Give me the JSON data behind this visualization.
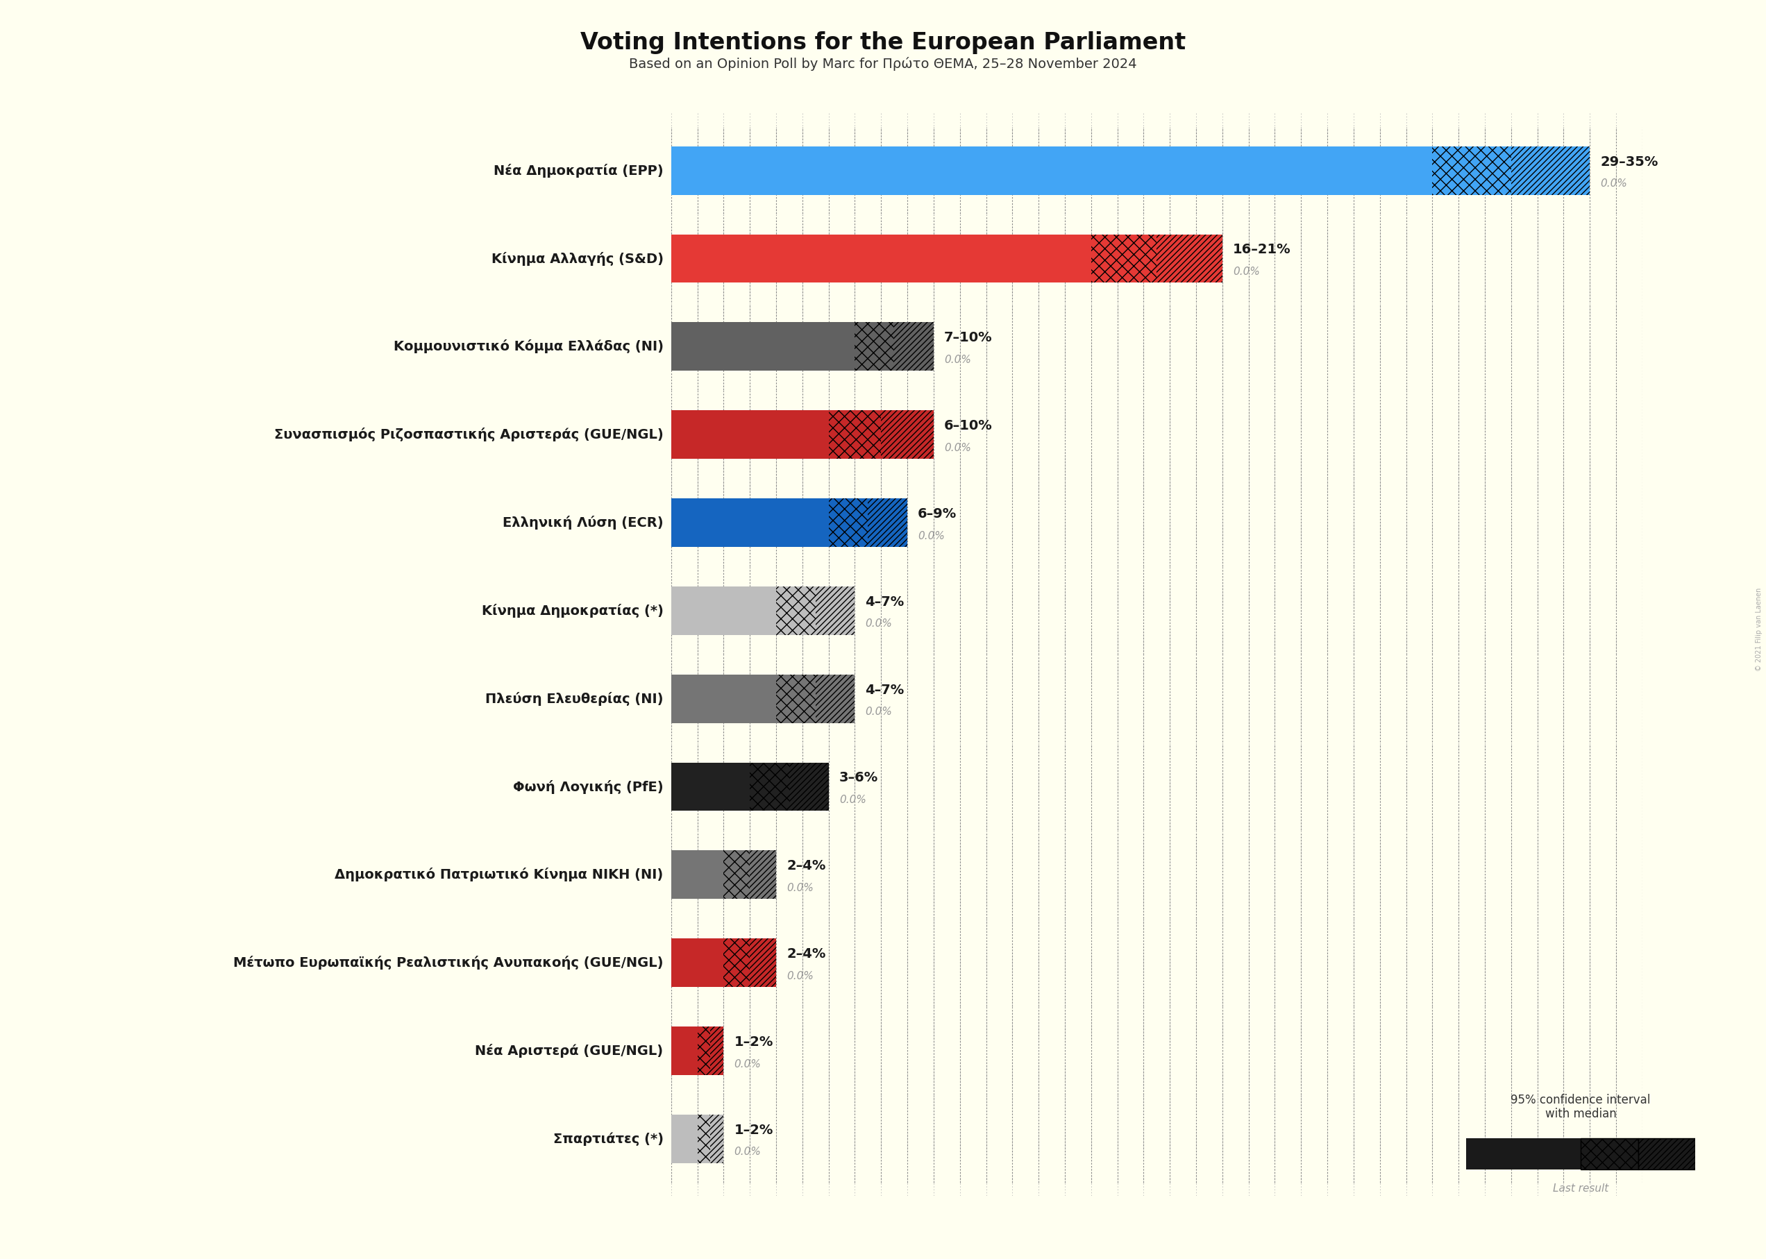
{
  "title": "Voting Intentions for the European Parliament",
  "subtitle": "Based on an Opinion Poll by Marc for Πρώτο ΘΕΜΑ, 25–28 November 2024",
  "copyright": "© 2021 Filip van Laenen",
  "background_color": "#fffff0",
  "parties": [
    {
      "name": "Νέα Δημοκρατία (EPP)",
      "low": 29,
      "high": 35,
      "median": 32,
      "last": 0.0,
      "color": "#42a5f5",
      "hatch_color": "#42a5f5"
    },
    {
      "name": "Κίνημα Αλλαγής (S&D)",
      "low": 16,
      "high": 21,
      "median": 18,
      "last": 0.0,
      "color": "#e53935",
      "hatch_color": "#e53935"
    },
    {
      "name": "Κομμουνιστικό Κόμμα Ελλάδας (NI)",
      "low": 7,
      "high": 10,
      "median": 8,
      "last": 0.0,
      "color": "#616161",
      "hatch_color": "#616161"
    },
    {
      "name": "Συνασπισμός Ριζοσπαστικής Αριστεράς (GUE/NGL)",
      "low": 6,
      "high": 10,
      "median": 8,
      "last": 0.0,
      "color": "#c62828",
      "hatch_color": "#c62828"
    },
    {
      "name": "Ελληνική Λύση (ECR)",
      "low": 6,
      "high": 9,
      "median": 7,
      "last": 0.0,
      "color": "#1565c0",
      "hatch_color": "#1565c0"
    },
    {
      "name": "Κίνημα Δημοκρατίας (*)",
      "low": 4,
      "high": 7,
      "median": 5,
      "last": 0.0,
      "color": "#bdbdbd",
      "hatch_color": "#bdbdbd"
    },
    {
      "name": "Πλεύση Ελευθερίας (NI)",
      "low": 4,
      "high": 7,
      "median": 5,
      "last": 0.0,
      "color": "#757575",
      "hatch_color": "#757575"
    },
    {
      "name": "Φωνή Λογικής (PfE)",
      "low": 3,
      "high": 6,
      "median": 4,
      "last": 0.0,
      "color": "#212121",
      "hatch_color": "#212121"
    },
    {
      "name": "Δημοκρατικό Πατριωτικό Κίνημα ΝΙΚΗ (NI)",
      "low": 2,
      "high": 4,
      "median": 3,
      "last": 0.0,
      "color": "#757575",
      "hatch_color": "#757575"
    },
    {
      "name": "Μέτωπο Ευρωπαϊκής Ρεαλιστικής Ανυπακοής (GUE/NGL)",
      "low": 2,
      "high": 4,
      "median": 3,
      "last": 0.0,
      "color": "#c62828",
      "hatch_color": "#c62828"
    },
    {
      "name": "Νέα Αριστερά (GUE/NGL)",
      "low": 1,
      "high": 2,
      "median": 1,
      "last": 0.0,
      "color": "#c62828",
      "hatch_color": "#c62828"
    },
    {
      "name": "Σπαρτιάτες (*)",
      "low": 1,
      "high": 2,
      "median": 1,
      "last": 0.0,
      "color": "#bdbdbd",
      "hatch_color": "#bdbdbd"
    }
  ],
  "x_max": 37,
  "bar_height": 0.55,
  "label_fontsize": 14,
  "name_fontsize": 14,
  "title_fontsize": 24,
  "subtitle_fontsize": 14
}
